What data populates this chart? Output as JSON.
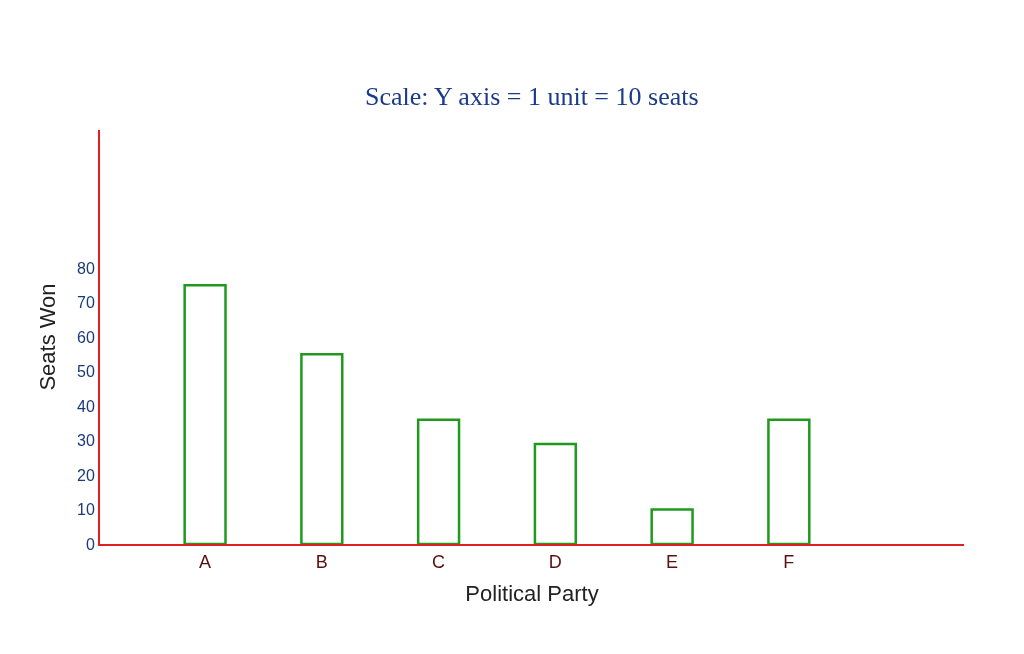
{
  "chart_data": {
    "type": "bar",
    "subtitle": "Scale: Y axis = 1 unit = 10 seats",
    "xlabel": "Political Party",
    "ylabel": "Seats Won",
    "categories": [
      "A",
      "B",
      "C",
      "D",
      "E",
      "F"
    ],
    "values": [
      75,
      55,
      36,
      29,
      10,
      36
    ],
    "color": "#1f9a1f",
    "ylim": [
      0,
      120
    ],
    "yticks": [
      0,
      10,
      20,
      30,
      40,
      50,
      60,
      70,
      80
    ]
  }
}
